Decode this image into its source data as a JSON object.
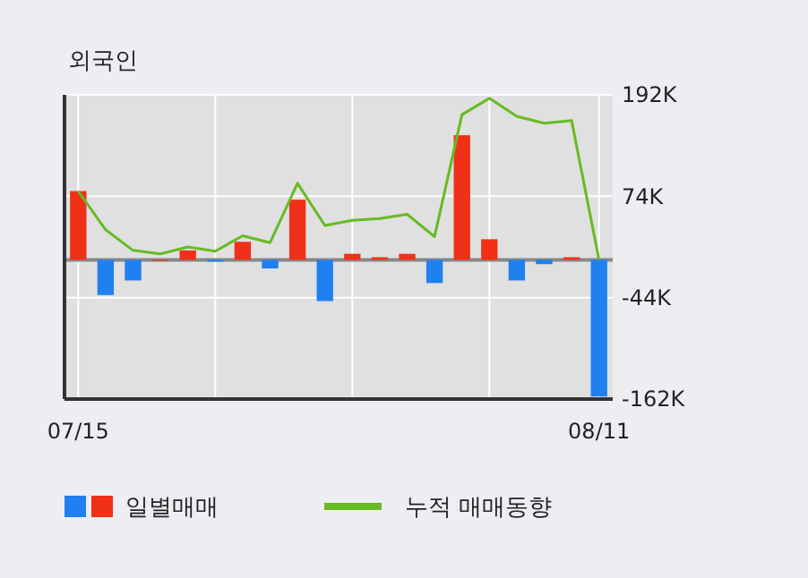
{
  "chart_data": {
    "type": "bar",
    "title": "외국인",
    "categories": [
      "07/15",
      null,
      null,
      null,
      null,
      null,
      null,
      null,
      null,
      null,
      null,
      null,
      null,
      null,
      null,
      null,
      null,
      null,
      null,
      "08/11"
    ],
    "series": [
      {
        "name": "일별매매",
        "colors": [
          "#f03018",
          "#2080f0",
          "#2080f0",
          "#f03018",
          "#f03018",
          "#2080f0",
          "#f03018",
          "#2080f0",
          "#f03018",
          "#2080f0",
          "#f03018",
          "#f03018",
          "#f03018",
          "#2080f0",
          "#f03018",
          "#f03018",
          "#2080f0",
          "#2080f0",
          "#f03018",
          "#2080f0"
        ],
        "values": [
          80000,
          -41000,
          -24000,
          0,
          11000,
          -2000,
          21000,
          -10000,
          70000,
          -48000,
          7000,
          3000,
          7000,
          -27000,
          145000,
          24000,
          -24000,
          -5000,
          3000,
          -159000
        ]
      },
      {
        "name": "누적 매매동향",
        "type": "line",
        "color": "#66bb22",
        "values": [
          80000,
          35000,
          11000,
          7000,
          15000,
          10000,
          28000,
          20000,
          89000,
          40000,
          46000,
          48000,
          53000,
          27000,
          169000,
          188000,
          167000,
          159000,
          162000,
          0
        ]
      }
    ],
    "ylim": [
      -162000,
      192000
    ],
    "yticks": [
      {
        "value": 192000,
        "label": "192K"
      },
      {
        "value": 74000,
        "label": "74K"
      },
      {
        "value": -44000,
        "label": "-44K"
      },
      {
        "value": -162000,
        "label": "-162K"
      }
    ],
    "grid": true,
    "legend": "bottom"
  }
}
